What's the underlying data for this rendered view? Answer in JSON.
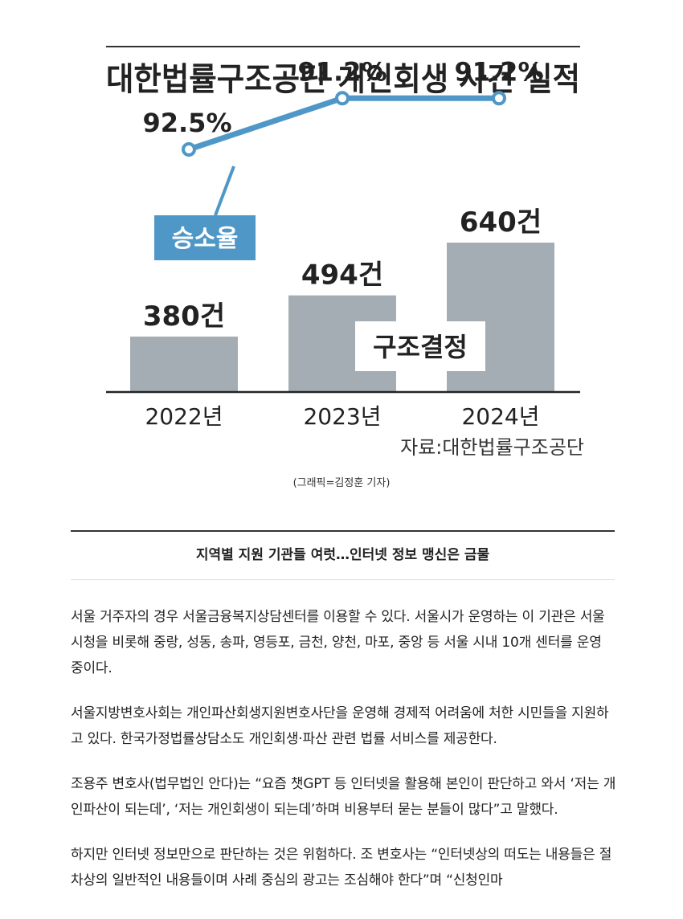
{
  "chart_data": {
    "type": "bar",
    "title": "대한법률구조공단 개인회생 사건 실적",
    "categories": [
      "2022년",
      "2023년",
      "2024년"
    ],
    "series": [
      {
        "name": "구조결정",
        "type": "bar",
        "values": [
          380,
          494,
          640
        ],
        "labels": [
          "380건",
          "494건",
          "640건"
        ]
      },
      {
        "name": "승소율",
        "type": "line",
        "values": [
          92.5,
          91.2,
          91.2
        ],
        "labels": [
          "92.5%",
          "91.2%",
          "91.2%"
        ]
      }
    ],
    "source": "자료:대한법률구조공단",
    "colors": {
      "bar": "#a4adb4",
      "line": "#4f97c7",
      "line_legend_bg": "#4f97c7"
    }
  },
  "credit": "(그래픽=김정훈 기자)",
  "section_title": "지역별 지원 기관들 여럿…인터넷 정보 맹신은 금물",
  "paragraphs": [
    "서울 거주자의 경우 서울금융복지상담센터를 이용할 수 있다. 서울시가 운영하는 이 기관은 서울시청을 비롯해 중랑, 성동, 송파, 영등포, 금천, 양천, 마포, 중앙 등 서울 시내 10개 센터를 운영 중이다.",
    "서울지방변호사회는 개인파산회생지원변호사단을 운영해 경제적 어려움에 처한 시민들을 지원하고 있다. 한국가정법률상담소도 개인회생·파산 관련 법률 서비스를 제공한다.",
    "조용주 변호사(법무법인 안다)는 “요즘 챗GPT 등 인터넷을 활용해 본인이 판단하고 와서 ‘저는 개인파산이 되는데’, ‘저는 개인회생이 되는데’하며 비용부터 묻는 분들이 많다”고 말했다.",
    "하지만 인터넷 정보만으로 판단하는 것은 위험하다. 조 변호사는 “인터넷상의 떠도는 내용들은 절차상의 일반적인 내용들이며 사례 중심의 광고는 조심해야 한다”며 “신청인마"
  ]
}
